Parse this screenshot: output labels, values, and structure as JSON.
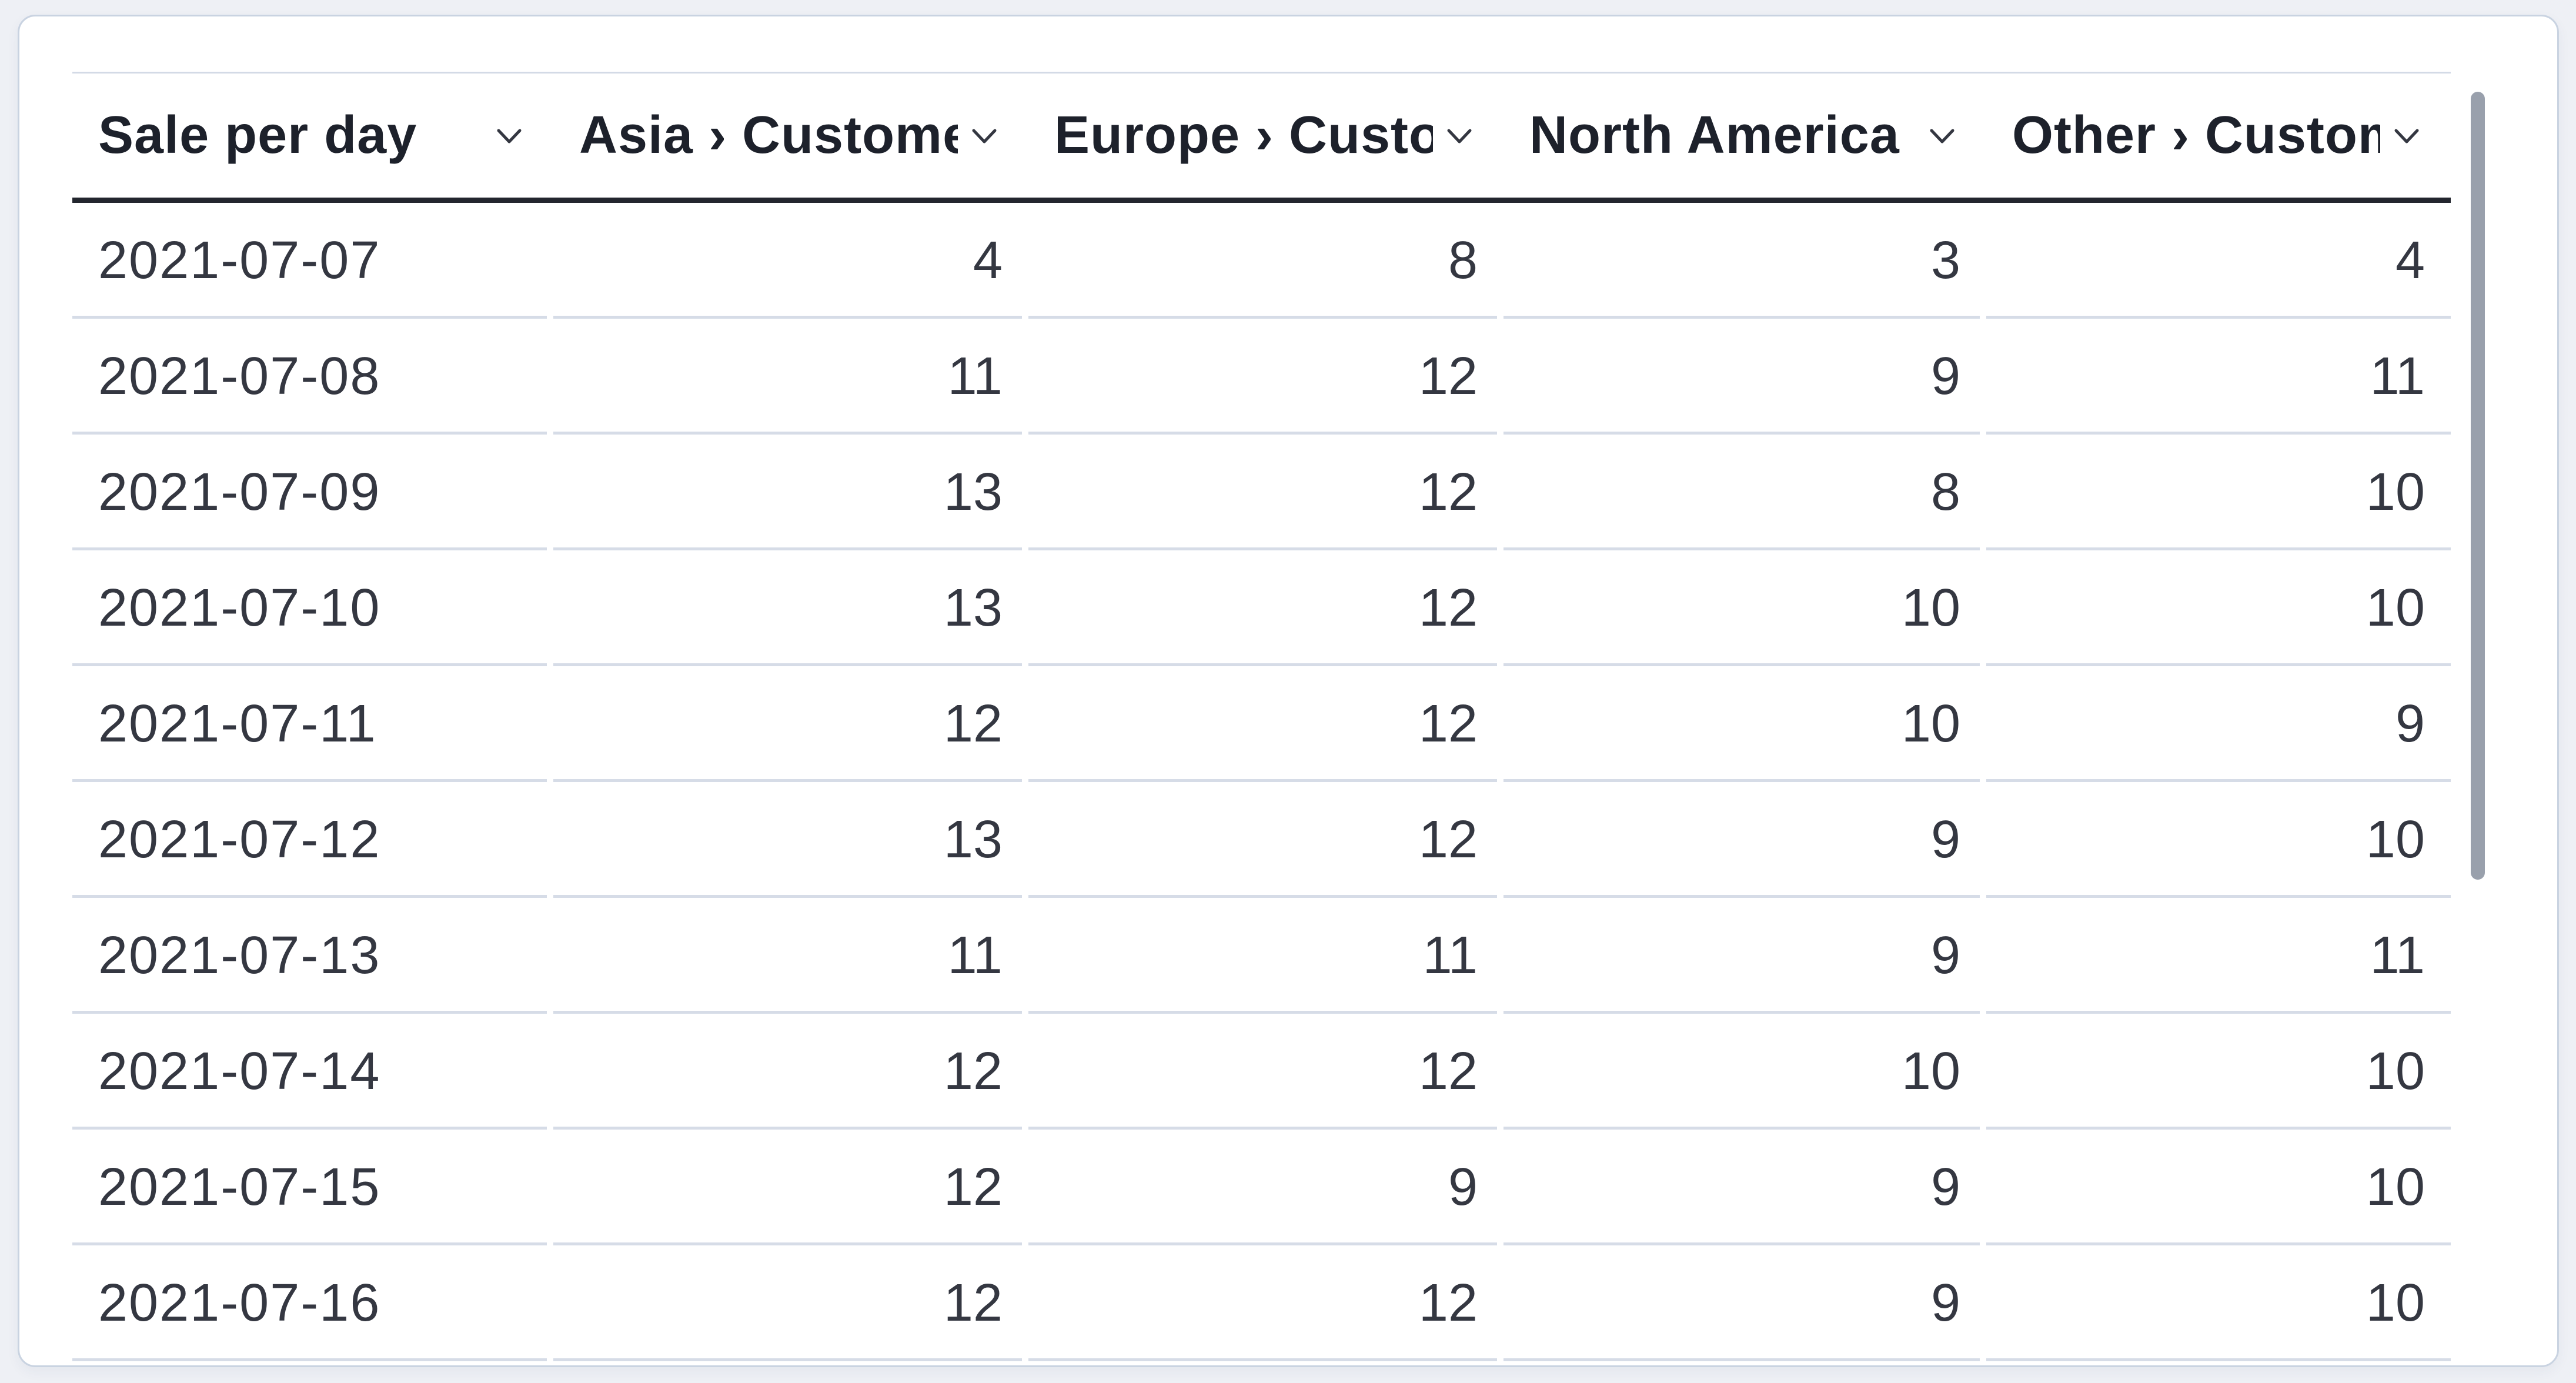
{
  "widget": {
    "type": "datatable",
    "colors": {
      "page_background": "#eef0f5",
      "card_background": "#ffffff",
      "card_border": "#c9d3e1",
      "header_underline": "#23262e",
      "row_divider": "#d6dce7",
      "header_text": "#1d212b",
      "body_text": "#343741",
      "scrollbar_thumb": "#99a0ac"
    },
    "icons": {
      "header_sort": "chevron-down"
    }
  },
  "table": {
    "columns": [
      {
        "id": "sale_per_day",
        "label": "Sale per day",
        "align": "left"
      },
      {
        "id": "asia",
        "label": "Asia › Customers",
        "align": "right"
      },
      {
        "id": "europe",
        "label": "Europe › Customers",
        "align": "right"
      },
      {
        "id": "north_america",
        "label": "North America › Customers",
        "align": "right"
      },
      {
        "id": "other",
        "label": "Other › Customers",
        "align": "right"
      }
    ],
    "rows": [
      {
        "date": "2021-07-07",
        "values": [
          "4",
          "8",
          "3",
          "4"
        ]
      },
      {
        "date": "2021-07-08",
        "values": [
          "11",
          "12",
          "9",
          "11"
        ]
      },
      {
        "date": "2021-07-09",
        "values": [
          "13",
          "12",
          "8",
          "10"
        ]
      },
      {
        "date": "2021-07-10",
        "values": [
          "13",
          "12",
          "10",
          "10"
        ]
      },
      {
        "date": "2021-07-11",
        "values": [
          "12",
          "12",
          "10",
          "9"
        ]
      },
      {
        "date": "2021-07-12",
        "values": [
          "13",
          "12",
          "9",
          "10"
        ]
      },
      {
        "date": "2021-07-13",
        "values": [
          "11",
          "11",
          "9",
          "11"
        ]
      },
      {
        "date": "2021-07-14",
        "values": [
          "12",
          "12",
          "10",
          "10"
        ]
      },
      {
        "date": "2021-07-15",
        "values": [
          "12",
          "9",
          "9",
          "10"
        ]
      },
      {
        "date": "2021-07-16",
        "values": [
          "12",
          "12",
          "9",
          "10"
        ]
      }
    ],
    "scrollbar": {
      "visible": true,
      "orientation": "vertical"
    }
  }
}
